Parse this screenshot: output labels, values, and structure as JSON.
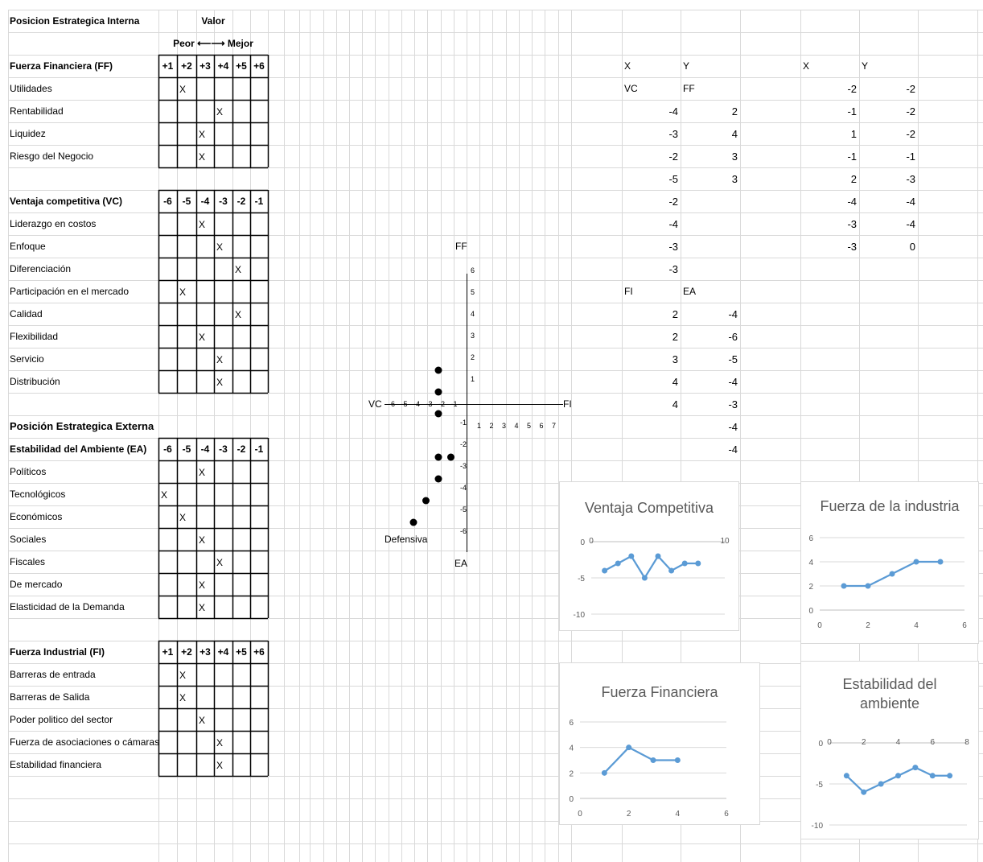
{
  "sheet": {
    "internal_title": "Posicion Estrategica Interna",
    "valor_label": "Valor",
    "scale_label": "Peor ⟵⟶ Mejor",
    "ff": {
      "title": "Fuerza Financiera (FF)",
      "scale": [
        "+1",
        "+2",
        "+3",
        "+4",
        "+5",
        "+6"
      ],
      "rows": [
        {
          "label": "Utilidades",
          "mark_col": 1
        },
        {
          "label": "Rentabilidad",
          "mark_col": 3
        },
        {
          "label": "Liquidez",
          "mark_col": 2
        },
        {
          "label": "Riesgo del Negocio",
          "mark_col": 2
        }
      ]
    },
    "vc": {
      "title": "Ventaja competitiva (VC)",
      "scale": [
        "-6",
        "-5",
        "-4",
        "-3",
        "-2",
        "-1"
      ],
      "rows": [
        {
          "label": "Liderazgo en costos",
          "mark_col": 2
        },
        {
          "label": "Enfoque",
          "mark_col": 3
        },
        {
          "label": "Diferenciación",
          "mark_col": 4
        },
        {
          "label": "Participación en el mercado",
          "mark_col": 1
        },
        {
          "label": "Calidad",
          "mark_col": 4
        },
        {
          "label": "Flexibilidad",
          "mark_col": 2
        },
        {
          "label": "Servicio",
          "mark_col": 3
        },
        {
          "label": "Distribución",
          "mark_col": 3
        }
      ]
    },
    "external_title": "Posición Estrategica Externa",
    "ea": {
      "title": "Estabilidad del Ambiente (EA)",
      "scale": [
        "-6",
        "-5",
        "-4",
        "-3",
        "-2",
        "-1"
      ],
      "rows": [
        {
          "label": "Políticos",
          "mark_col": 2
        },
        {
          "label": "Tecnológicos",
          "mark_col": 0
        },
        {
          "label": "Económicos",
          "mark_col": 1
        },
        {
          "label": "Sociales",
          "mark_col": 2
        },
        {
          "label": "Fiscales",
          "mark_col": 3
        },
        {
          "label": "De mercado",
          "mark_col": 2
        },
        {
          "label": "Elasticidad de la Demanda",
          "mark_col": 2
        }
      ]
    },
    "fi": {
      "title": "Fuerza Industrial (FI)",
      "scale": [
        "+1",
        "+2",
        "+3",
        "+4",
        "+5",
        "+6"
      ],
      "rows": [
        {
          "label": "Barreras de entrada",
          "mark_col": 1
        },
        {
          "label": "Barreras de Salida",
          "mark_col": 1
        },
        {
          "label": "Poder politico del sector",
          "mark_col": 2
        },
        {
          "label": "Fuerza de asociaciones o cámaras",
          "mark_col": 3
        },
        {
          "label": "Estabilidad financiera",
          "mark_col": 3
        }
      ]
    },
    "mark": "X"
  },
  "data_table_1": {
    "x_header": "X",
    "y_header": "Y",
    "vc_label": "VC",
    "ff_label": "FF",
    "vc_values": [
      "-4",
      "-3",
      "-2",
      "-5",
      "-2",
      "-4",
      "-3",
      "-3"
    ],
    "ff_values": [
      "2",
      "4",
      "3",
      "3"
    ],
    "fi_label": "FI",
    "ea_label": "EA",
    "fi_values": [
      "2",
      "2",
      "3",
      "4",
      "4"
    ],
    "ea_values": [
      "-4",
      "-6",
      "-5",
      "-4",
      "-3",
      "-4",
      "-4"
    ]
  },
  "data_table_2": {
    "x_header": "X",
    "y_header": "Y",
    "x_values": [
      "-2",
      "-1",
      "1",
      "-1",
      "2",
      "-4",
      "-3",
      "-3"
    ],
    "y_values": [
      "-2",
      "-2",
      "-2",
      "-1",
      "-3",
      "-4",
      "-4",
      "0"
    ]
  },
  "axis_plot": {
    "y_label": "FF",
    "x_left_label": "VC",
    "x_right_label": "FI",
    "bottom_label": "EA",
    "quadrant_label": "Defensiva",
    "neg_x_ticks": [
      "-6",
      "-5",
      "-4",
      "-3",
      "-2",
      "-1"
    ],
    "pos_x_ticks": [
      "1",
      "2",
      "3",
      "4",
      "5",
      "6",
      "7"
    ],
    "pos_y_ticks": [
      "6",
      "5",
      "4",
      "3",
      "2",
      "1"
    ],
    "neg_y_ticks": [
      "-1",
      "-2",
      "-3",
      "-4",
      "-5",
      "-6"
    ],
    "points": [
      {
        "x": -2,
        "y": 2
      },
      {
        "x": -2,
        "y": 1
      },
      {
        "x": -2,
        "y": 0
      },
      {
        "x": -2,
        "y": -2
      },
      {
        "x": -1,
        "y": -2
      },
      {
        "x": -2,
        "y": -3
      },
      {
        "x": -3,
        "y": -4
      },
      {
        "x": -4,
        "y": -5
      }
    ]
  },
  "chart_data": [
    {
      "type": "line",
      "title": "Ventaja Competitiva",
      "x": [
        1,
        2,
        3,
        4,
        5,
        6,
        7,
        8
      ],
      "y": [
        -4,
        -3,
        -2,
        -5,
        -2,
        -4,
        -3,
        -3
      ],
      "xlim": [
        0,
        10
      ],
      "ylim": [
        -10,
        0
      ],
      "x_ticks": [
        "0",
        "10"
      ],
      "y_ticks": [
        "0",
        "-5",
        "-10"
      ],
      "color": "#5b9bd5"
    },
    {
      "type": "line",
      "title": "Fuerza de la industria",
      "x": [
        1,
        2,
        3,
        4,
        5
      ],
      "y": [
        2,
        2,
        3,
        4,
        4
      ],
      "xlim": [
        0,
        6
      ],
      "ylim": [
        0,
        6
      ],
      "x_ticks": [
        "0",
        "2",
        "4",
        "6"
      ],
      "y_ticks": [
        "0",
        "2",
        "4",
        "6"
      ],
      "color": "#5b9bd5"
    },
    {
      "type": "line",
      "title": "Fuerza Financiera",
      "x": [
        1,
        2,
        3,
        4
      ],
      "y": [
        2,
        4,
        3,
        3
      ],
      "xlim": [
        0,
        6
      ],
      "ylim": [
        0,
        6
      ],
      "x_ticks": [
        "0",
        "2",
        "4",
        "6"
      ],
      "y_ticks": [
        "0",
        "2",
        "4",
        "6"
      ],
      "color": "#5b9bd5"
    },
    {
      "type": "line",
      "title": "Estabilidad del ambiente",
      "x": [
        1,
        2,
        3,
        4,
        5,
        6,
        7
      ],
      "y": [
        -4,
        -6,
        -5,
        -4,
        -3,
        -4,
        -4
      ],
      "xlim": [
        0,
        8
      ],
      "ylim": [
        -10,
        0
      ],
      "x_ticks": [
        "0",
        "2",
        "4",
        "6",
        "8"
      ],
      "y_ticks": [
        "0",
        "-5",
        "-10"
      ],
      "color": "#5b9bd5"
    }
  ]
}
